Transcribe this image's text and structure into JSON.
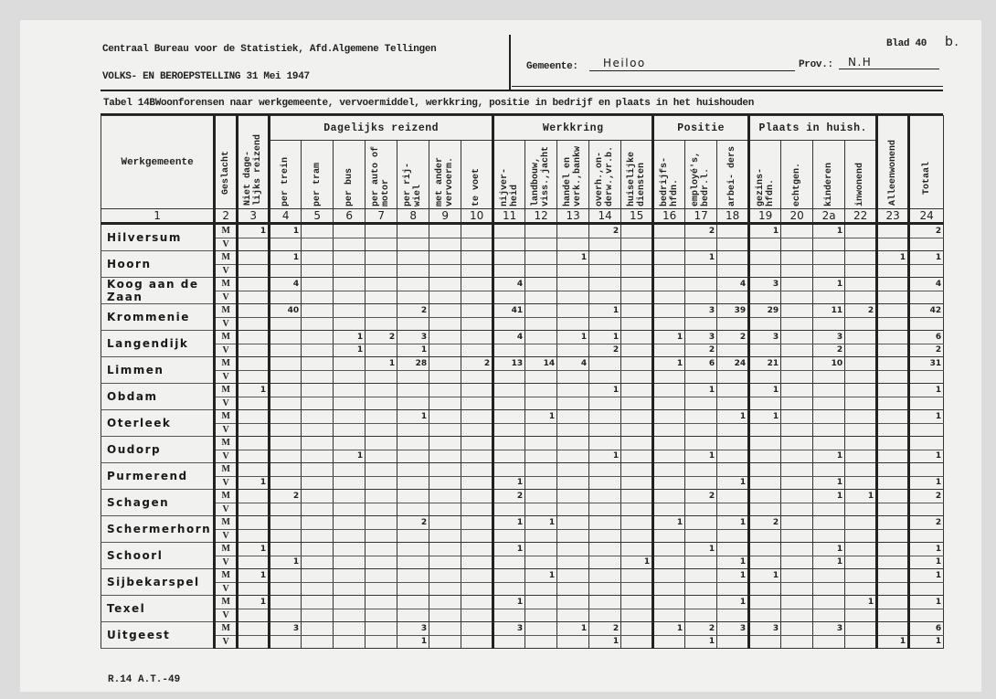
{
  "header": {
    "bureau": "Centraal Bureau voor de Statistiek, Afd.Algemene Tellingen",
    "census": "VOLKS- EN BEROEPSTELLING 31 Mei 1947",
    "blad_label": "Blad 40",
    "blad_suffix": "b.",
    "gemeente_label": "Gemeente:",
    "gemeente_value": "Heiloo",
    "prov_label": "Prov.:",
    "prov_value": "N.H",
    "tabel_title": "Tabel 14BWoonforensen naar werkgemeente, vervoermiddel, werkkring, positie in bedrijf en plaats in het huishouden"
  },
  "columns": {
    "werkgemeente": "Werkgemeente",
    "geslacht": "Geslacht",
    "niet_dagelijks": "Niet dage- lijks reizend",
    "group_dagelijks": "Dagelijks reizend",
    "group_werkkring": "Werkkring",
    "group_positie": "Positie",
    "group_plaats": "Plaats in huish.",
    "alleenwonend": "Alleenwonend",
    "totaal": "Totaal",
    "sub": [
      "per trein",
      "per tram",
      "per bus",
      "per auto of motor",
      "per rij- wiel",
      "met ander vervoerm.",
      "te voet",
      "nijver- heid",
      "landbouw, viss.,jacht",
      "handel en verk.,bankw",
      "overh.,on- derw.,vr.b.",
      "huiselijke diensten",
      "bedrijfs- hfdn.",
      "employé's, bedr.l.",
      "arbei- ders",
      "gezins- hfdn.",
      "echtgen.",
      "kinderen",
      "inwonend"
    ],
    "numbers": [
      "1",
      "2",
      "3",
      "4",
      "5",
      "6",
      "7",
      "8",
      "9",
      "10",
      "11",
      "12",
      "13",
      "14",
      "15",
      "16",
      "17",
      "18",
      "19",
      "20",
      "2a",
      "22",
      "23",
      "24"
    ]
  },
  "sex": {
    "m": "M",
    "v": "V"
  },
  "rows": [
    {
      "place": "Hilversum",
      "m": [
        "1",
        "1",
        "",
        "",
        "",
        "",
        "",
        "",
        "",
        "",
        "",
        "2",
        "",
        "",
        "2",
        "",
        "1",
        "",
        "1",
        "",
        "",
        "2"
      ],
      "v": [
        "",
        "",
        "",
        "",
        "",
        "",
        "",
        "",
        "",
        "",
        "",
        "",
        "",
        "",
        "",
        "",
        "",
        "",
        "",
        "",
        "",
        ""
      ]
    },
    {
      "place": "Hoorn",
      "m": [
        "",
        "1",
        "",
        "",
        "",
        "",
        "",
        "",
        "",
        "",
        "1",
        "",
        "",
        "",
        "1",
        "",
        "",
        "",
        "",
        "",
        "1",
        "1"
      ],
      "v": [
        "",
        "",
        "",
        "",
        "",
        "",
        "",
        "",
        "",
        "",
        "",
        "",
        "",
        "",
        "",
        "",
        "",
        "",
        "",
        "",
        "",
        ""
      ]
    },
    {
      "place": "Koog aan de Zaan",
      "m": [
        "",
        "4",
        "",
        "",
        "",
        "",
        "",
        "",
        "4",
        "",
        "",
        "",
        "",
        "",
        "",
        "4",
        "3",
        "",
        "1",
        "",
        "",
        "4"
      ],
      "v": [
        "",
        "",
        "",
        "",
        "",
        "",
        "",
        "",
        "",
        "",
        "",
        "",
        "",
        "",
        "",
        "",
        "",
        "",
        "",
        "",
        "",
        ""
      ]
    },
    {
      "place": "Krommenie",
      "m": [
        "",
        "40",
        "",
        "",
        "",
        "2",
        "",
        "",
        "41",
        "",
        "",
        "1",
        "",
        "",
        "3",
        "39",
        "29",
        "",
        "11",
        "2",
        "",
        "42"
      ],
      "v": [
        "",
        "",
        "",
        "",
        "",
        "",
        "",
        "",
        "",
        "",
        "",
        "",
        "",
        "",
        "",
        "",
        "",
        "",
        "",
        "",
        "",
        ""
      ]
    },
    {
      "place": "Langendijk",
      "m": [
        "",
        "",
        "",
        "1",
        "2",
        "3",
        "",
        "",
        "4",
        "",
        "1",
        "1",
        "",
        "1",
        "3",
        "2",
        "3",
        "",
        "3",
        "",
        "",
        "6"
      ],
      "v": [
        "",
        "",
        "",
        "1",
        "",
        "1",
        "",
        "",
        "",
        "",
        "",
        "2",
        "",
        "",
        "2",
        "",
        "",
        "",
        "2",
        "",
        "",
        "2"
      ]
    },
    {
      "place": "Limmen",
      "m": [
        "",
        "",
        "",
        "",
        "1",
        "28",
        "",
        "2",
        "13",
        "14",
        "4",
        "",
        "",
        "1",
        "6",
        "24",
        "21",
        "",
        "10",
        "",
        "",
        "31"
      ],
      "v": [
        "",
        "",
        "",
        "",
        "",
        "",
        "",
        "",
        "",
        "",
        "",
        "",
        "",
        "",
        "",
        "",
        "",
        "",
        "",
        "",
        "",
        ""
      ]
    },
    {
      "place": "Obdam",
      "m": [
        "1",
        "",
        "",
        "",
        "",
        "",
        "",
        "",
        "",
        "",
        "",
        "1",
        "",
        "",
        "1",
        "",
        "1",
        "",
        "",
        "",
        "",
        "1"
      ],
      "v": [
        "",
        "",
        "",
        "",
        "",
        "",
        "",
        "",
        "",
        "",
        "",
        "",
        "",
        "",
        "",
        "",
        "",
        "",
        "",
        "",
        "",
        ""
      ]
    },
    {
      "place": "Oterleek",
      "m": [
        "",
        "",
        "",
        "",
        "",
        "1",
        "",
        "",
        "",
        "1",
        "",
        "",
        "",
        "",
        "",
        "1",
        "1",
        "",
        "",
        "",
        "",
        "1"
      ],
      "v": [
        "",
        "",
        "",
        "",
        "",
        "",
        "",
        "",
        "",
        "",
        "",
        "",
        "",
        "",
        "",
        "",
        "",
        "",
        "",
        "",
        "",
        ""
      ]
    },
    {
      "place": "Oudorp",
      "m": [
        "",
        "",
        "",
        "",
        "",
        "",
        "",
        "",
        "",
        "",
        "",
        "",
        "",
        "",
        "",
        "",
        "",
        "",
        "",
        "",
        "",
        ""
      ],
      "v": [
        "",
        "",
        "",
        "1",
        "",
        "",
        "",
        "",
        "",
        "",
        "",
        "1",
        "",
        "",
        "1",
        "",
        "",
        "",
        "1",
        "",
        "",
        "1"
      ]
    },
    {
      "place": "Purmerend",
      "m": [
        "",
        "",
        "",
        "",
        "",
        "",
        "",
        "",
        "",
        "",
        "",
        "",
        "",
        "",
        "",
        "",
        "",
        "",
        "",
        "",
        "",
        ""
      ],
      "v": [
        "1",
        "",
        "",
        "",
        "",
        "",
        "",
        "",
        "1",
        "",
        "",
        "",
        "",
        "",
        "",
        "1",
        "",
        "",
        "1",
        "",
        "",
        "1"
      ]
    },
    {
      "place": "Schagen",
      "m": [
        "",
        "2",
        "",
        "",
        "",
        "",
        "",
        "",
        "2",
        "",
        "",
        "",
        "",
        "",
        "2",
        "",
        "",
        "",
        "1",
        "1",
        "",
        "2"
      ],
      "v": [
        "",
        "",
        "",
        "",
        "",
        "",
        "",
        "",
        "",
        "",
        "",
        "",
        "",
        "",
        "",
        "",
        "",
        "",
        "",
        "",
        "",
        ""
      ]
    },
    {
      "place": "Schermerhorn",
      "m": [
        "",
        "",
        "",
        "",
        "",
        "2",
        "",
        "",
        "1",
        "1",
        "",
        "",
        "",
        "1",
        "",
        "1",
        "2",
        "",
        "",
        "",
        "",
        "2"
      ],
      "v": [
        "",
        "",
        "",
        "",
        "",
        "",
        "",
        "",
        "",
        "",
        "",
        "",
        "",
        "",
        "",
        "",
        "",
        "",
        "",
        "",
        "",
        ""
      ]
    },
    {
      "place": "Schoorl",
      "m": [
        "1",
        "",
        "",
        "",
        "",
        "",
        "",
        "",
        "1",
        "",
        "",
        "",
        "",
        "",
        "1",
        "",
        "",
        "",
        "1",
        "",
        "",
        "1"
      ],
      "v": [
        "",
        "1",
        "",
        "",
        "",
        "",
        "",
        "",
        "",
        "",
        "",
        "",
        "1",
        "",
        "",
        "1",
        "",
        "",
        "1",
        "",
        "",
        "1"
      ]
    },
    {
      "place": "Sijbekarspel",
      "m": [
        "1",
        "",
        "",
        "",
        "",
        "",
        "",
        "",
        "",
        "1",
        "",
        "",
        "",
        "",
        "",
        "1",
        "1",
        "",
        "",
        "",
        "",
        "1"
      ],
      "v": [
        "",
        "",
        "",
        "",
        "",
        "",
        "",
        "",
        "",
        "",
        "",
        "",
        "",
        "",
        "",
        "",
        "",
        "",
        "",
        "",
        "",
        ""
      ]
    },
    {
      "place": "Texel",
      "m": [
        "1",
        "",
        "",
        "",
        "",
        "",
        "",
        "",
        "1",
        "",
        "",
        "",
        "",
        "",
        "",
        "1",
        "",
        "",
        "",
        "1",
        "",
        "1"
      ],
      "v": [
        "",
        "",
        "",
        "",
        "",
        "",
        "",
        "",
        "",
        "",
        "",
        "",
        "",
        "",
        "",
        "",
        "",
        "",
        "",
        "",
        "",
        ""
      ]
    },
    {
      "place": "Uitgeest",
      "m": [
        "",
        "3",
        "",
        "",
        "",
        "3",
        "",
        "",
        "3",
        "",
        "1",
        "2",
        "",
        "1",
        "2",
        "3",
        "3",
        "",
        "3",
        "",
        "",
        "6"
      ],
      "v": [
        "",
        "",
        "",
        "",
        "",
        "1",
        "",
        "",
        "",
        "",
        "",
        "1",
        "",
        "",
        "1",
        "",
        "",
        "",
        "",
        "",
        "1",
        "1"
      ]
    }
  ],
  "footer": {
    "form_code": "R.14 A.T.-49"
  }
}
